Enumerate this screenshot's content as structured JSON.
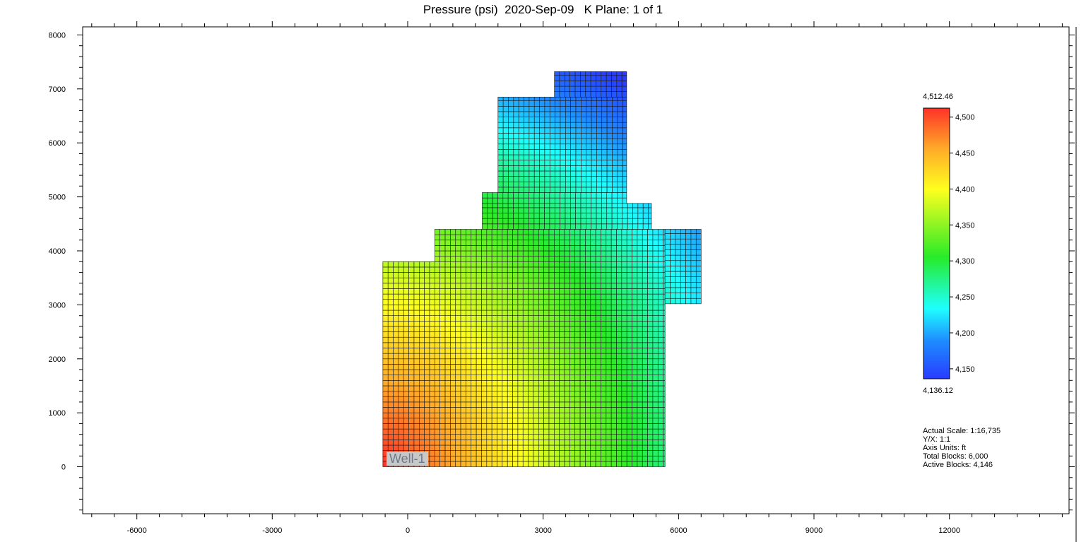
{
  "title": "Pressure (psi)  2020-Sep-09   K Plane: 1 of 1",
  "chart_data": {
    "type": "heatmap",
    "variable": "Pressure (psi)",
    "x_ticks": [
      -6000,
      -3000,
      0,
      3000,
      6000,
      9000,
      12000
    ],
    "y_ticks": [
      0,
      1000,
      2000,
      3000,
      4000,
      5000,
      6000,
      7000,
      8000
    ],
    "xlim": [
      -7200,
      14650
    ],
    "ylim": [
      -870,
      8150
    ],
    "grid_regions_ft": [
      {
        "x": [
          -550,
          5700
        ],
        "y": [
          0,
          3800
        ]
      },
      {
        "x": [
          600,
          5700
        ],
        "y": [
          3800,
          4400
        ]
      },
      {
        "x": [
          5700,
          6500
        ],
        "y": [
          3020,
          4400
        ]
      },
      {
        "x": [
          1650,
          5400
        ],
        "y": [
          4400,
          4880
        ]
      },
      {
        "x": [
          1650,
          4850
        ],
        "y": [
          4880,
          5080
        ]
      },
      {
        "x": [
          2000,
          4850
        ],
        "y": [
          5080,
          6850
        ]
      },
      {
        "x": [
          3250,
          4850
        ],
        "y": [
          6850,
          7320
        ]
      }
    ],
    "cell_size_ft": [
      115,
      100
    ],
    "colorbar": {
      "min": 4136.12,
      "max": 4512.46,
      "min_label": "4,136.12",
      "max_label": "4,512.46",
      "ticks": [
        4150,
        4200,
        4250,
        4300,
        4350,
        4400,
        4450,
        4500
      ],
      "tick_labels": [
        "4,150",
        "4,200",
        "4,250",
        "4,300",
        "4,350",
        "4,400",
        "4,450",
        "4,500"
      ]
    },
    "wells": [
      {
        "name": "Well-1",
        "x": -550,
        "y": 0
      }
    ]
  },
  "info": {
    "actual_scale": "Actual Scale: 1:16,735",
    "yx_ratio": "Y/X: 1:1",
    "axis_units": "Axis Units: ft",
    "total_blocks": "Total Blocks: 6,000",
    "active_blocks": "Active Blocks: 4,146"
  }
}
